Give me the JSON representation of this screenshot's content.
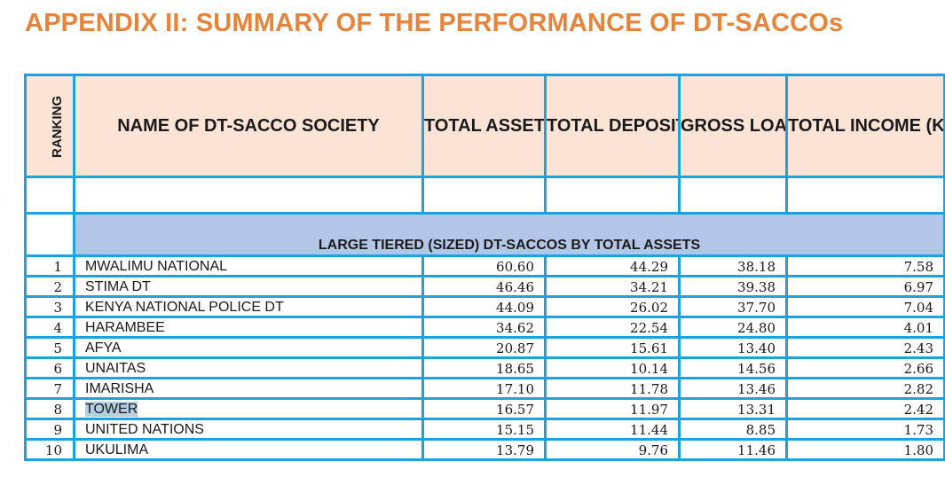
{
  "title": "APPENDIX II: SUMMARY OF THE PERFORMANCE OF DT-SACCOs",
  "colors": {
    "title": "#e8833a",
    "border": "#1aa3df",
    "header_bg": "#fbe3d6",
    "section_bg": "#b4c6e7",
    "highlight": "#b3cde3"
  },
  "table": {
    "headers": {
      "ranking": "RANKING",
      "name": "NAME OF DT-SACCO SOCIETY",
      "assets": "TOTAL ASSETS (Kshs B)",
      "deposits": "TOTAL DEPOSITS (Kshs B)",
      "loans": "GROSS LOANS (Kshs B)",
      "income": "TOTAL INCOME (Kshs B))"
    },
    "section_title": "LARGE TIERED (SIZED) DT-SACCOS BY TOTAL ASSETS",
    "rows": [
      {
        "rank": "1",
        "name": "MWALIMU NATIONAL",
        "assets": "60.60",
        "deposits": "44.29",
        "loans": "38.18",
        "income": "7.58"
      },
      {
        "rank": "2",
        "name": "STIMA DT",
        "assets": "46.46",
        "deposits": "34.21",
        "loans": "39.38",
        "income": "6.97"
      },
      {
        "rank": "3",
        "name": "KENYA NATIONAL POLICE DT",
        "assets": "44.09",
        "deposits": "26.02",
        "loans": "37.70",
        "income": "7.04"
      },
      {
        "rank": "4",
        "name": "HARAMBEE",
        "assets": "34.62",
        "deposits": "22.54",
        "loans": "24.80",
        "income": "4.01"
      },
      {
        "rank": "5",
        "name": "AFYA",
        "assets": "20.87",
        "deposits": "15.61",
        "loans": "13.40",
        "income": "2.43"
      },
      {
        "rank": "6",
        "name": "UNAITAS",
        "assets": "18.65",
        "deposits": "10.14",
        "loans": "14.56",
        "income": "2.66"
      },
      {
        "rank": "7",
        "name": "IMARISHA",
        "assets": "17.10",
        "deposits": "11.78",
        "loans": "13.46",
        "income": "2.82"
      },
      {
        "rank": "8",
        "name": "TOWER",
        "assets": "16.57",
        "deposits": "11.97",
        "loans": "13.31",
        "income": "2.42"
      },
      {
        "rank": "9",
        "name": "UNITED NATIONS",
        "assets": "15.15",
        "deposits": "11.44",
        "loans": "8.85",
        "income": "1.73"
      },
      {
        "rank": "10",
        "name": "UKULIMA",
        "assets": "13.79",
        "deposits": "9.76",
        "loans": "11.46",
        "income": "1.80"
      }
    ]
  }
}
